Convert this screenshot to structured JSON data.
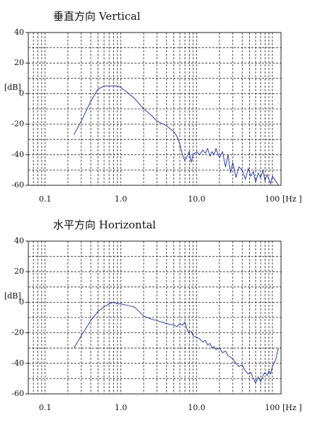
{
  "chart_data": [
    {
      "type": "line",
      "title": "垂直方向  Vertical",
      "ylabel": "[dB]",
      "xlabel": "[Hz ]",
      "log_x": true,
      "grid": true,
      "xlim": [
        0.06,
        130
      ],
      "xticks": [
        0.1,
        {
          "value": 1,
          "label": "1.0"
        },
        {
          "value": 10,
          "label": "10.0"
        },
        100
      ],
      "xminorticks": [
        0.07,
        0.08,
        0.09,
        0.2,
        0.3,
        0.4,
        0.5,
        0.6,
        0.7,
        0.8,
        0.9,
        2,
        3,
        4,
        5,
        6,
        7,
        8,
        9,
        20,
        30,
        40,
        50,
        60,
        70,
        80,
        90
      ],
      "ylim": [
        -60,
        40
      ],
      "yticks": [
        40,
        20,
        0,
        -20,
        -40,
        -60
      ],
      "yminorticks": [
        30,
        10,
        -10,
        -30,
        -50
      ],
      "x": [
        0.24,
        0.3,
        0.4,
        0.5,
        0.6,
        0.7,
        0.8,
        0.9,
        1.0,
        1.2,
        1.5,
        2,
        2.5,
        3,
        4,
        5,
        5.5,
        6,
        6.5,
        7,
        7.5,
        8,
        8.5,
        9,
        10,
        11,
        12,
        13,
        14,
        15,
        16,
        17,
        18,
        20,
        22,
        24,
        26,
        28,
        30,
        33,
        36,
        40,
        44,
        48,
        52,
        56,
        60,
        65,
        70,
        75,
        80,
        85,
        90,
        95,
        100,
        110,
        120
      ],
      "series": [
        {
          "color": "#2b3fa0",
          "values": [
            -27,
            -18,
            -5,
            3,
            5,
            5,
            5,
            5,
            4,
            1,
            -3,
            -10,
            -14,
            -18,
            -21,
            -25,
            -28,
            -33,
            -40,
            -44,
            -41,
            -38,
            -45,
            -40,
            -38,
            -40,
            -37,
            -39,
            -36,
            -41,
            -38,
            -40,
            -36,
            -42,
            -38,
            -48,
            -40,
            -52,
            -45,
            -55,
            -48,
            -50,
            -56,
            -49,
            -54,
            -51,
            -58,
            -52,
            -55,
            -50,
            -57,
            -53,
            -56,
            -59,
            -54,
            -57,
            -60
          ]
        }
      ]
    },
    {
      "type": "line",
      "title": "水平方向  Horizontal",
      "ylabel": "[dB]",
      "xlabel": "[Hz ]",
      "log_x": true,
      "grid": true,
      "xlim": [
        0.06,
        130
      ],
      "xticks": [
        0.1,
        {
          "value": 1,
          "label": "1.0"
        },
        {
          "value": 10,
          "label": "10.0"
        },
        100
      ],
      "xminorticks": [
        0.07,
        0.08,
        0.09,
        0.2,
        0.3,
        0.4,
        0.5,
        0.6,
        0.7,
        0.8,
        0.9,
        2,
        3,
        4,
        5,
        6,
        7,
        8,
        9,
        20,
        30,
        40,
        50,
        60,
        70,
        80,
        90
      ],
      "ylim": [
        -60,
        40
      ],
      "yticks": [
        40,
        20,
        0,
        -20,
        -40,
        -60
      ],
      "yminorticks": [
        30,
        10,
        -10,
        -30,
        -50
      ],
      "x": [
        0.24,
        0.3,
        0.4,
        0.5,
        0.6,
        0.7,
        0.8,
        0.9,
        1.0,
        1.2,
        1.5,
        2,
        2.5,
        3,
        4,
        5,
        5.5,
        6,
        6.5,
        7,
        7.5,
        8,
        8.5,
        9,
        10,
        11,
        12,
        13,
        14,
        15,
        16,
        17,
        18,
        20,
        22,
        24,
        26,
        28,
        30,
        33,
        36,
        40,
        44,
        48,
        52,
        56,
        60,
        65,
        70,
        75,
        80,
        85,
        90,
        95,
        100,
        110,
        120
      ],
      "series": [
        {
          "color": "#2b3fa0",
          "values": [
            -30,
            -22,
            -12,
            -6,
            -3,
            -1,
            0,
            -1,
            -1,
            -2,
            -3,
            -9,
            -11,
            -12,
            -14,
            -15,
            -16,
            -14,
            -15,
            -13,
            -18,
            -20,
            -19,
            -22,
            -23,
            -24,
            -26,
            -25,
            -28,
            -27,
            -30,
            -29,
            -31,
            -30,
            -33,
            -32,
            -35,
            -36,
            -37,
            -40,
            -42,
            -41,
            -45,
            -47,
            -46,
            -50,
            -53,
            -49,
            -52,
            -48,
            -46,
            -48,
            -45,
            -47,
            -42,
            -38,
            -30
          ]
        }
      ]
    }
  ]
}
